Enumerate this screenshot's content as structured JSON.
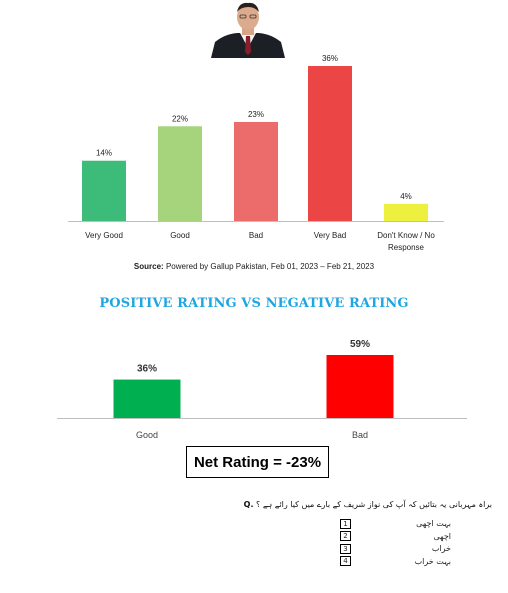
{
  "chart_data": [
    {
      "type": "bar",
      "categories": [
        "Very Good",
        "Good",
        "Bad",
        "Very Bad",
        "Don't Know / No Response"
      ],
      "values": [
        14,
        22,
        23,
        36,
        4
      ],
      "labels": [
        "14%",
        "22%",
        "23%",
        "36%",
        "4%"
      ],
      "colors": [
        "#3dbb79",
        "#a6d47c",
        "#ec6b6b",
        "#ec4545",
        "#eef03f"
      ],
      "ylim": [
        0,
        36
      ]
    },
    {
      "type": "bar",
      "title": "POSITIVE RATING VS NEGATIVE RATING",
      "categories": [
        "Good",
        "Bad"
      ],
      "values": [
        36,
        59
      ],
      "labels": [
        "36%",
        "59%"
      ],
      "colors": [
        "#00b050",
        "#ff0000"
      ],
      "ylim": [
        0,
        59
      ]
    }
  ],
  "source": {
    "label": "Source:",
    "text": "Powered by Gallup Pakistan, Feb 01, 2023 – Feb 21, 2023"
  },
  "net_rating": "Net Rating = -23%",
  "question": {
    "prefix": "Q.",
    "text": "براہ مہربانی یہ بتائیں کہ آپ کی نواز شریف کے بارے میں کیا رائے ہے ؟",
    "options": [
      {
        "num": "1",
        "text": "بہت اچھی"
      },
      {
        "num": "2",
        "text": "اچھی"
      },
      {
        "num": "3",
        "text": "خراب"
      },
      {
        "num": "4",
        "text": "بہت خراب"
      }
    ]
  },
  "photo_icon": "portrait-photo"
}
